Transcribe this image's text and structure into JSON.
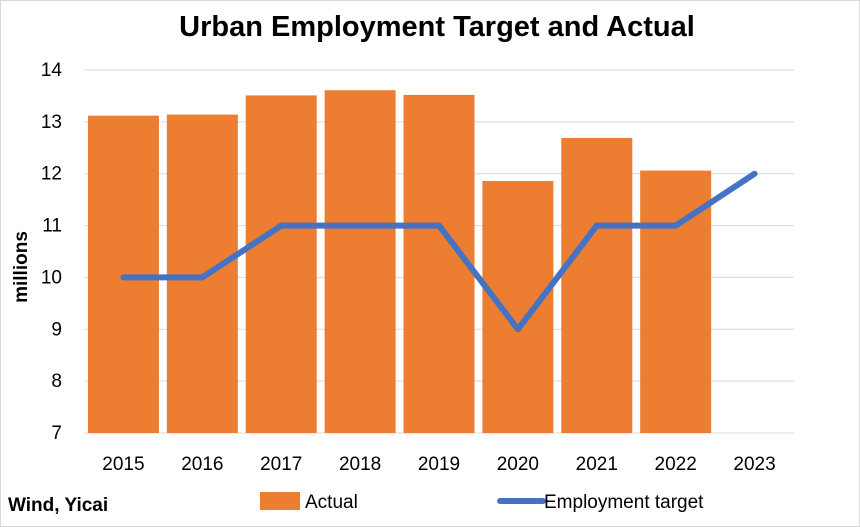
{
  "chart_data": {
    "type": "bar",
    "title": "Urban Employment Target and Actual",
    "ylabel": "millions",
    "xlabel": "",
    "categories": [
      "2015",
      "2016",
      "2017",
      "2018",
      "2019",
      "2020",
      "2021",
      "2022",
      "2023"
    ],
    "ylim": [
      7,
      14
    ],
    "yticks": [
      7,
      8,
      9,
      10,
      11,
      12,
      13,
      14
    ],
    "grid": true,
    "legend_position": "bottom",
    "series": [
      {
        "name": "Actual",
        "type": "bar",
        "color": "#ED7D31",
        "values": [
          13.12,
          13.14,
          13.51,
          13.61,
          13.52,
          11.86,
          12.69,
          12.06,
          null
        ]
      },
      {
        "name": "Employment target",
        "type": "line",
        "color": "#4472C4",
        "values": [
          10,
          10,
          11,
          11,
          11,
          9,
          11,
          11,
          12
        ]
      }
    ],
    "source": "Wind, Yicai"
  }
}
